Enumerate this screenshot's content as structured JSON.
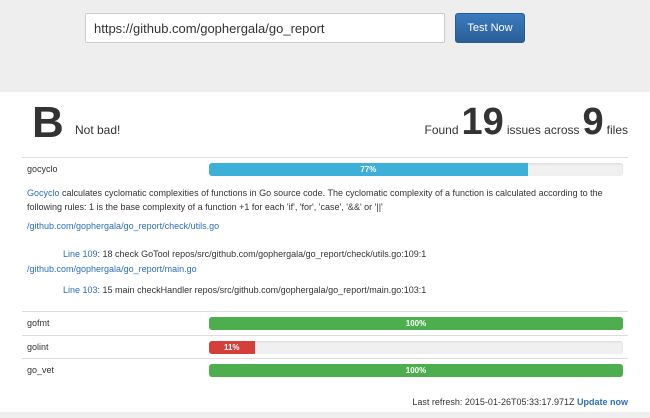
{
  "search": {
    "value": "https://github.com/gophergala/go_report",
    "button": "Test Now"
  },
  "summary": {
    "grade": "B",
    "grade_text": "Not bad!",
    "found": "Found",
    "issues": "19",
    "issues_label": "issues across",
    "files": "9",
    "files_label": "files"
  },
  "checks": [
    {
      "name": "gocyclo",
      "percent": 77,
      "label": "77%",
      "color": "#3cb0d8"
    },
    {
      "name": "gofmt",
      "percent": 100,
      "label": "100%",
      "color": "#4cae4c"
    },
    {
      "name": "golint",
      "percent": 11,
      "label": "11%",
      "color": "#d43f3a"
    },
    {
      "name": "go_vet",
      "percent": 100,
      "label": "100%",
      "color": "#4cae4c"
    }
  ],
  "details": {
    "tool_link": "Gocyclo",
    "description": " calculates cyclomatic complexities of functions in Go source code. The cyclomatic complexity of a function is calculated according to the following rules: 1 is the base complexity of a function +1 for each 'if', 'for', 'case', '&&' or '||'",
    "files": [
      {
        "path": "/github.com/gophergala/go_report/check/utils.go",
        "line_link": "Line 109",
        "text": ": 18 check GoTool repos/src/github.com/gophergala/go_report/check/utils.go:109:1"
      },
      {
        "path": "/github.com/gophergala/go_report/main.go",
        "line_link": "Line 103",
        "text": ": 15 main checkHandler repos/src/github.com/gophergala/go_report/main.go:103:1"
      }
    ]
  },
  "footer": {
    "last_refresh": "Last refresh: 2015-01-26T05:33:17.971Z ",
    "update": "Update now"
  }
}
